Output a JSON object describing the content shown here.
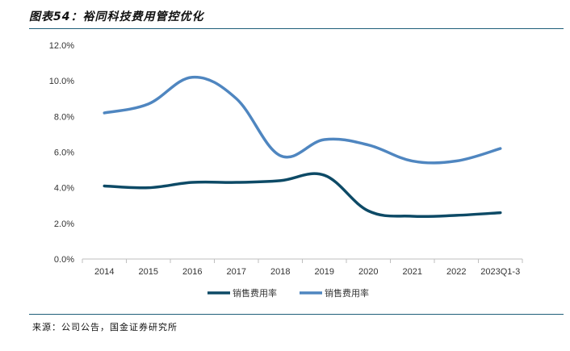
{
  "header": {
    "title": "图表54：裕同科技费用管控优化"
  },
  "footer": {
    "source": "来源：公司公告，国金证券研究所"
  },
  "chart_data": {
    "type": "line",
    "categories": [
      "2014",
      "2015",
      "2016",
      "2017",
      "2018",
      "2019",
      "2020",
      "2021",
      "2022",
      "2023Q1-3"
    ],
    "ylim": [
      0,
      12
    ],
    "yticks": [
      "0.0%",
      "2.0%",
      "4.0%",
      "6.0%",
      "8.0%",
      "10.0%",
      "12.0%"
    ],
    "grid": false,
    "legend_position": "bottom",
    "series": [
      {
        "name": "销售费用率",
        "color": "#0d4a66",
        "values": [
          4.1,
          4.0,
          4.3,
          4.3,
          4.4,
          4.7,
          2.7,
          2.4,
          2.45,
          2.6
        ]
      },
      {
        "name": "销售费用率",
        "color": "#4f86c0",
        "values": [
          8.2,
          8.7,
          10.2,
          9.0,
          5.8,
          6.7,
          6.4,
          5.5,
          5.5,
          6.2
        ]
      }
    ]
  }
}
